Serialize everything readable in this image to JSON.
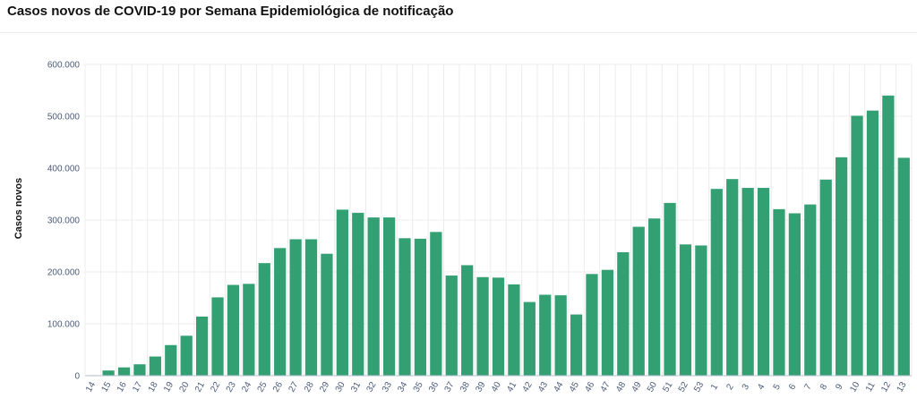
{
  "chart_data": {
    "type": "bar",
    "title": "Casos novos de COVID-19 por Semana Epidemiológica de notificação",
    "xlabel": "",
    "ylabel": "Casos novos",
    "ylim": [
      0,
      600000
    ],
    "yticks": [
      0,
      100000,
      200000,
      300000,
      400000,
      500000,
      600000
    ],
    "ytick_labels": [
      "0",
      "100.000",
      "200.000",
      "300.000",
      "400.000",
      "500.000",
      "600.000"
    ],
    "grid": true,
    "bar_color": "#33a074",
    "grid_color": "#ececec",
    "categories": [
      "14",
      "15",
      "16",
      "17",
      "18",
      "19",
      "20",
      "21",
      "22",
      "23",
      "24",
      "25",
      "26",
      "27",
      "28",
      "29",
      "30",
      "31",
      "32",
      "33",
      "34",
      "35",
      "36",
      "37",
      "38",
      "39",
      "40",
      "41",
      "42",
      "43",
      "44",
      "45",
      "46",
      "47",
      "48",
      "49",
      "50",
      "51",
      "52",
      "53",
      "1",
      "2",
      "3",
      "4",
      "5",
      "6",
      "7",
      "8",
      "9",
      "10",
      "11",
      "12",
      "13"
    ],
    "values": [
      1000,
      10000,
      16000,
      22000,
      37000,
      59000,
      77000,
      114000,
      151000,
      175000,
      177000,
      217000,
      246000,
      263000,
      263000,
      235000,
      320000,
      314000,
      305000,
      305000,
      265000,
      264000,
      277000,
      193000,
      213000,
      190000,
      189000,
      176000,
      142000,
      156000,
      155000,
      118000,
      196000,
      204000,
      238000,
      287000,
      303000,
      333000,
      253000,
      251000,
      360000,
      379000,
      362000,
      362000,
      321000,
      313000,
      330000,
      378000,
      421000,
      501000,
      511000,
      540000,
      420000
    ]
  }
}
